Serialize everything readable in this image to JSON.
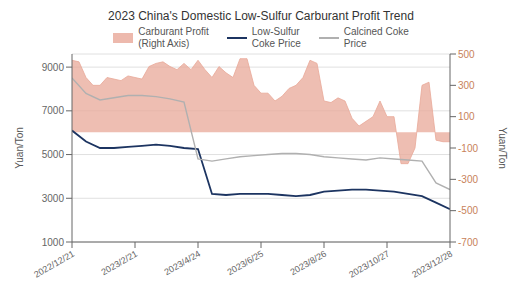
{
  "chart_data": {
    "type": "line",
    "title": "2023 China's Domestic Low-Sulfur Carburant Profit Trend",
    "ylabel": "Yuan/Ton",
    "y2label": "Yuan/Ton",
    "xlim": [
      0,
      54
    ],
    "xticks": [
      {
        "value": 0,
        "label": "2022/12/21"
      },
      {
        "value": 9,
        "label": "2023/2/21"
      },
      {
        "value": 18,
        "label": "2023/4/24"
      },
      {
        "value": 27,
        "label": "2023/6/25"
      },
      {
        "value": 36,
        "label": "2023/8/26"
      },
      {
        "value": 45,
        "label": "2023/10/27"
      },
      {
        "value": 54,
        "label": "2023/12/28"
      }
    ],
    "ylim": [
      1000,
      9600
    ],
    "yticks": [
      1000,
      3000,
      5000,
      7000,
      9000
    ],
    "y2lim": [
      -700,
      500
    ],
    "y2ticks": [
      -700,
      -500,
      -300,
      -100,
      100,
      300,
      500
    ],
    "grid": true,
    "legend": "top",
    "series": [
      {
        "name": "Carburant Profit\n(Right Axis)",
        "type": "area",
        "axis": "y2",
        "color": "#e8a898",
        "x": [
          0,
          1,
          2,
          3,
          4,
          5,
          6,
          7,
          8,
          9,
          10,
          11,
          12,
          13,
          14,
          15,
          16,
          17,
          18,
          19,
          20,
          21,
          22,
          23,
          24,
          25,
          26,
          27,
          28,
          29,
          30,
          31,
          32,
          33,
          34,
          35,
          36,
          37,
          38,
          39,
          40,
          41,
          42,
          43,
          44,
          45,
          46,
          47,
          48,
          49,
          50,
          51,
          52,
          53,
          54
        ],
        "values": [
          460,
          450,
          350,
          300,
          300,
          350,
          340,
          330,
          360,
          350,
          340,
          420,
          440,
          450,
          420,
          400,
          440,
          400,
          460,
          400,
          350,
          420,
          380,
          350,
          470,
          470,
          300,
          250,
          250,
          200,
          230,
          280,
          300,
          350,
          460,
          440,
          200,
          190,
          220,
          200,
          90,
          40,
          70,
          100,
          200,
          100,
          100,
          -200,
          -200,
          -100,
          300,
          320,
          -50,
          -60,
          -60
        ]
      },
      {
        "name": "Low-Sulfur\nCoke Price",
        "type": "line",
        "axis": "y",
        "color": "#1c3461",
        "x": [
          0,
          2,
          4,
          6,
          8,
          10,
          12,
          14,
          16,
          18,
          20,
          22,
          24,
          26,
          28,
          30,
          32,
          34,
          36,
          38,
          40,
          42,
          44,
          46,
          48,
          50,
          52,
          54
        ],
        "values": [
          6100,
          5600,
          5300,
          5300,
          5350,
          5400,
          5450,
          5400,
          5300,
          5250,
          3200,
          3150,
          3200,
          3200,
          3200,
          3150,
          3100,
          3150,
          3300,
          3350,
          3400,
          3400,
          3350,
          3300,
          3200,
          3100,
          2800,
          2500
        ]
      },
      {
        "name": "Calcined Coke\nPrice",
        "type": "line",
        "axis": "y",
        "color": "#b0b0b0",
        "x": [
          0,
          2,
          4,
          6,
          8,
          10,
          12,
          14,
          16,
          18,
          20,
          22,
          24,
          26,
          28,
          30,
          32,
          34,
          36,
          38,
          40,
          42,
          44,
          46,
          48,
          50,
          52,
          54
        ],
        "values": [
          8500,
          7800,
          7500,
          7600,
          7700,
          7700,
          7650,
          7550,
          7400,
          4800,
          4700,
          4800,
          4900,
          4950,
          5000,
          5050,
          5050,
          5000,
          4900,
          4850,
          4800,
          4750,
          4850,
          4800,
          4750,
          4700,
          3700,
          3400
        ]
      }
    ]
  }
}
